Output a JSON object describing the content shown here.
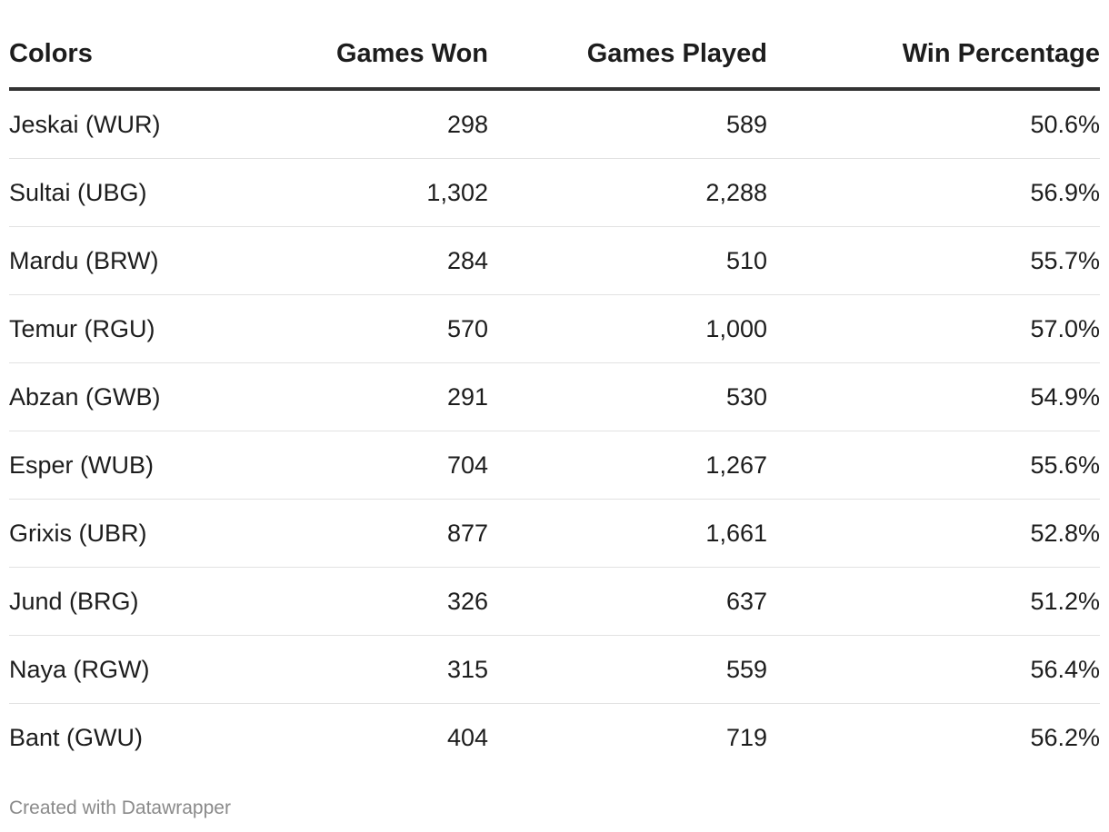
{
  "chart_data": {
    "type": "table",
    "columns": [
      "Colors",
      "Games Won",
      "Games Played",
      "Win Percentage"
    ],
    "rows": [
      [
        "Jeskai (WUR)",
        "298",
        "589",
        "50.6%"
      ],
      [
        "Sultai (UBG)",
        "1,302",
        "2,288",
        "56.9%"
      ],
      [
        "Mardu (BRW)",
        "284",
        "510",
        "55.7%"
      ],
      [
        "Temur (RGU)",
        "570",
        "1,000",
        "57.0%"
      ],
      [
        "Abzan (GWB)",
        "291",
        "530",
        "54.9%"
      ],
      [
        "Esper (WUB)",
        "704",
        "1,267",
        "55.6%"
      ],
      [
        "Grixis (UBR)",
        "877",
        "1,661",
        "52.8%"
      ],
      [
        "Jund (BRG)",
        "326",
        "637",
        "51.2%"
      ],
      [
        "Naya (RGW)",
        "315",
        "559",
        "56.4%"
      ],
      [
        "Bant (GWU)",
        "404",
        "719",
        "56.2%"
      ]
    ]
  },
  "footer": {
    "credit": "Created with Datawrapper"
  },
  "colors": {
    "text": "#1d1d1d",
    "header_rule": "#333333",
    "row_rule": "#e2e2e2",
    "credit": "#8a8a8a"
  }
}
